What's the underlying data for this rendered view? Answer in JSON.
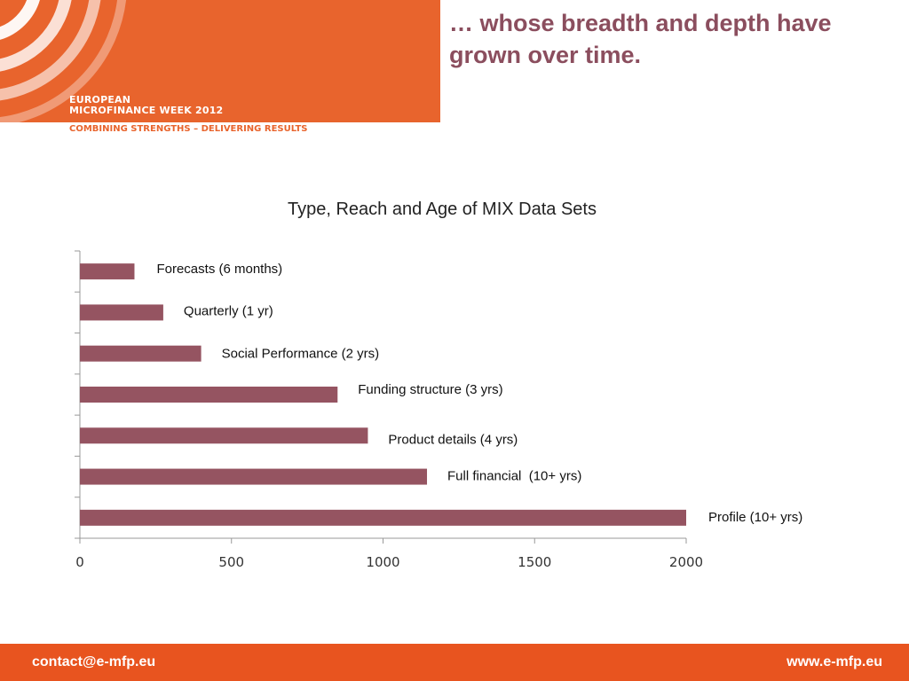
{
  "header": {
    "logo_line1": "EUROPEAN",
    "logo_line2": "MICROFINANCE WEEK 2012",
    "tagline": "COMBINING STRENGTHS – DELIVERING RESULTS",
    "headline": "… whose breadth and depth have grown over time."
  },
  "footer": {
    "email": "contact@e-mfp.eu",
    "website": "www.e-mfp.eu"
  },
  "colors": {
    "banner": "#E8642D",
    "footer": "#E8541F",
    "bar": "#955461",
    "headline": "#8B4E5E"
  },
  "chart_data": {
    "type": "bar",
    "orientation": "horizontal",
    "title": "Type, Reach and Age of MIX Data Sets",
    "categories": [
      "Forecasts (6 months)",
      "Quarterly (1 yr)",
      "Social Performance (2 yrs)",
      "Funding structure (3 yrs)",
      "Product details (4 yrs)",
      "Full financial  (10+ yrs)",
      "Profile (10+ yrs)"
    ],
    "values": [
      180,
      275,
      400,
      850,
      950,
      1145,
      2000
    ],
    "xlim": [
      0,
      2000
    ],
    "xticks": [
      "0",
      "500",
      "1000",
      "1500",
      "2000"
    ],
    "grid": false,
    "legend": "none"
  }
}
